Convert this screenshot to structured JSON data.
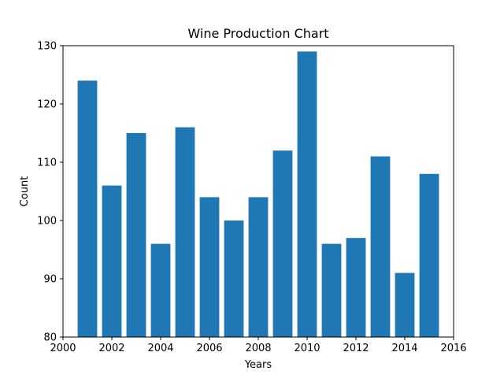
{
  "chart_data": {
    "type": "bar",
    "title": "Wine Production Chart",
    "xlabel": "Years",
    "ylabel": "Count",
    "x": [
      2001,
      2002,
      2003,
      2004,
      2005,
      2006,
      2007,
      2008,
      2009,
      2010,
      2011,
      2012,
      2013,
      2014,
      2015
    ],
    "values": [
      124,
      106,
      115,
      96,
      116,
      104,
      100,
      104,
      112,
      129,
      96,
      97,
      111,
      91,
      108
    ],
    "xlim": [
      2000,
      2016
    ],
    "ylim": [
      80,
      130
    ],
    "xticks": [
      "2000",
      "2002",
      "2004",
      "2006",
      "2008",
      "2010",
      "2012",
      "2014",
      "2016"
    ],
    "yticks": [
      "80",
      "90",
      "100",
      "110",
      "120",
      "130"
    ],
    "bar_color": "#1f77b4",
    "grid": false,
    "legend": "none"
  }
}
